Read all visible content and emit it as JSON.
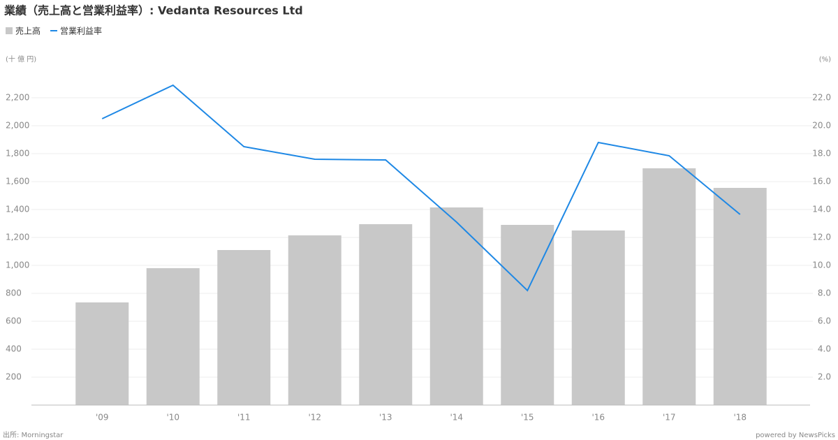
{
  "chart_data": {
    "type": "bar",
    "title": "業績（売上高と営業利益率）: Vedanta Resources Ltd",
    "y_unit": "(十 億 円)",
    "y2_unit": "(%)",
    "source": "出所: Morningstar",
    "credit": "powered by NewsPicks",
    "categories": [
      "'09",
      "'10",
      "'11",
      "'12",
      "'13",
      "'14",
      "'15",
      "'16",
      "'17",
      "'18"
    ],
    "series": [
      {
        "name": "売上高",
        "type": "bar",
        "color": "#c8c8c8",
        "values": [
          735,
          980,
          1110,
          1215,
          1295,
          1415,
          1290,
          1250,
          1695,
          1555
        ]
      },
      {
        "name": "営業利益率",
        "type": "line",
        "axis": "y2",
        "color": "#1e88e5",
        "values": [
          20.5,
          22.9,
          18.5,
          17.6,
          17.55,
          13.1,
          8.2,
          18.8,
          17.85,
          13.65
        ]
      }
    ],
    "ylim": [
      0,
      2400
    ],
    "yticks": [
      {
        "value": 200,
        "label": "200"
      },
      {
        "value": 400,
        "label": "400"
      },
      {
        "value": 600,
        "label": "600"
      },
      {
        "value": 800,
        "label": "800"
      },
      {
        "value": 1000,
        "label": "1,000"
      },
      {
        "value": 1200,
        "label": "1,200"
      },
      {
        "value": 1400,
        "label": "1,400"
      },
      {
        "value": 1600,
        "label": "1,600"
      },
      {
        "value": 1800,
        "label": "1,800"
      },
      {
        "value": 2000,
        "label": "2,000"
      },
      {
        "value": 2200,
        "label": "2,200"
      }
    ],
    "y2lim": [
      0,
      24
    ],
    "y2ticks": [
      {
        "value": 2,
        "label": "2.0"
      },
      {
        "value": 4,
        "label": "4.0"
      },
      {
        "value": 6,
        "label": "6.0"
      },
      {
        "value": 8,
        "label": "8.0"
      },
      {
        "value": 10,
        "label": "10.0"
      },
      {
        "value": 12,
        "label": "12.0"
      },
      {
        "value": 14,
        "label": "14.0"
      },
      {
        "value": 16,
        "label": "16.0"
      },
      {
        "value": 18,
        "label": "18.0"
      },
      {
        "value": 20,
        "label": "20.0"
      },
      {
        "value": 22,
        "label": "22.0"
      }
    ],
    "grid": true
  }
}
